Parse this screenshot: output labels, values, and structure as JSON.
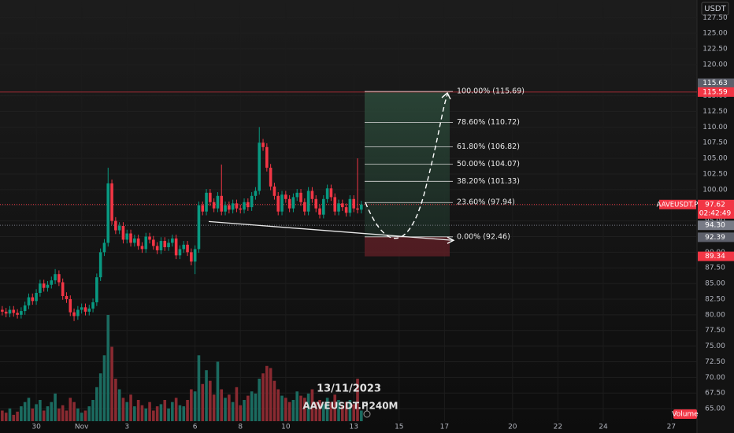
{
  "chart_data": {
    "type": "candlestick",
    "symbol": "AAVEUSDT.P",
    "interval": "240M",
    "date": "13/11/2023",
    "currency": "USDT",
    "volume_label": "Volume",
    "countdown": "02:42:49",
    "up_color": "#089981",
    "down_color": "#f23645",
    "volume_up_color": "#1b6b60",
    "volume_down_color": "#8a2a31",
    "ylim": [
      63,
      130.3
    ],
    "yticks": [
      {
        "value": 65,
        "label": "65.00"
      },
      {
        "value": 67.5,
        "label": "67.50"
      },
      {
        "value": 70,
        "label": "70.00"
      },
      {
        "value": 72.5,
        "label": "72.50"
      },
      {
        "value": 75,
        "label": "75.00"
      },
      {
        "value": 77.5,
        "label": "77.50"
      },
      {
        "value": 80,
        "label": "80.00"
      },
      {
        "value": 82.5,
        "label": "82.50"
      },
      {
        "value": 85,
        "label": "85.00"
      },
      {
        "value": 87.5,
        "label": "87.50"
      },
      {
        "value": 90,
        "label": "90.00"
      },
      {
        "value": 92.5,
        "label": "92.50"
      },
      {
        "value": 95,
        "label": "95.00"
      },
      {
        "value": 97.5,
        "label": "97.50"
      },
      {
        "value": 100,
        "label": "100.00"
      },
      {
        "value": 102.5,
        "label": "102.50"
      },
      {
        "value": 105,
        "label": "105.00"
      },
      {
        "value": 107.5,
        "label": "107.50"
      },
      {
        "value": 110,
        "label": "110.00"
      },
      {
        "value": 112.5,
        "label": "112.50"
      },
      {
        "value": 115,
        "label": "115.00"
      },
      {
        "value": 120,
        "label": "120.00"
      },
      {
        "value": 122.5,
        "label": "122.50"
      },
      {
        "value": 125,
        "label": "125.00"
      },
      {
        "value": 127.5,
        "label": "127.50"
      }
    ],
    "xlim": [
      -0.6,
      183.8
    ],
    "xticks": [
      {
        "value": 9,
        "label": "30"
      },
      {
        "value": 21,
        "label": "Nov"
      },
      {
        "value": 33,
        "label": "3"
      },
      {
        "value": 51,
        "label": "6"
      },
      {
        "value": 63,
        "label": "8"
      },
      {
        "value": 75,
        "label": "10"
      },
      {
        "value": 93,
        "label": "13"
      },
      {
        "value": 105,
        "label": "15"
      },
      {
        "value": 117,
        "label": "17"
      },
      {
        "value": 135,
        "label": "20"
      },
      {
        "value": 147,
        "label": "22"
      },
      {
        "value": 159,
        "label": "24"
      },
      {
        "value": 177,
        "label": "27"
      }
    ],
    "open": [
      80.8,
      80.5,
      80.2,
      80.8,
      80.3,
      80.0,
      80.6,
      81.5,
      82.8,
      82.2,
      83.5,
      85.0,
      84.3,
      84.8,
      85.5,
      86.5,
      85.2,
      83.0,
      82.5,
      80.4,
      79.8,
      80.8,
      81.2,
      80.5,
      81.0,
      82.0,
      86.0,
      90.0,
      91.5,
      101.0,
      95.0,
      93.5,
      94.2,
      92.0,
      93.0,
      91.5,
      92.2,
      91.0,
      90.5,
      92.5,
      92.0,
      91.0,
      90.3,
      91.8,
      90.8,
      91.5,
      92.2,
      89.5,
      90.5,
      91.2,
      90.0,
      88.5,
      90.5,
      97.5,
      96.5,
      99.5,
      98.0,
      97.0,
      99.0,
      96.5,
      97.5,
      96.8,
      97.8,
      97.0,
      96.8,
      98.0,
      97.2,
      99.0,
      99.8,
      107.5,
      106.8,
      103.5,
      100.5,
      99.0,
      96.5,
      99.2,
      98.5,
      97.0,
      98.8,
      99.5,
      98.0,
      96.5,
      99.8,
      98.5,
      97.0,
      96.0,
      98.5,
      100.2,
      98.8,
      96.5,
      97.8,
      97.2,
      96.3,
      98.5,
      97.0,
      96.8
    ],
    "high": [
      81.4,
      81.1,
      81.4,
      81.4,
      80.9,
      81.2,
      82.1,
      83.4,
      83.4,
      84.1,
      85.6,
      85.6,
      85.4,
      86.1,
      87.3,
      87.1,
      85.8,
      83.6,
      83.1,
      81.0,
      81.4,
      81.8,
      81.8,
      81.6,
      82.6,
      86.6,
      90.6,
      92.1,
      103.5,
      101.6,
      95.6,
      94.8,
      94.8,
      93.6,
      93.6,
      92.8,
      92.8,
      91.6,
      93.1,
      93.1,
      92.6,
      91.6,
      92.4,
      92.4,
      92.1,
      92.8,
      92.8,
      91.1,
      91.8,
      91.8,
      90.6,
      91.1,
      98.1,
      98.1,
      100.1,
      100.1,
      98.6,
      99.6,
      104.0,
      98.1,
      98.1,
      98.4,
      98.4,
      97.6,
      98.6,
      98.6,
      99.6,
      100.4,
      110.0,
      108.1,
      107.4,
      104.1,
      101.1,
      99.6,
      99.8,
      99.8,
      99.1,
      99.4,
      100.1,
      100.1,
      98.6,
      100.4,
      100.4,
      99.1,
      97.6,
      99.1,
      100.8,
      100.8,
      99.4,
      98.4,
      98.4,
      97.8,
      99.1,
      99.1,
      105.0,
      98.2
    ],
    "low": [
      79.9,
      79.6,
      79.6,
      79.7,
      79.4,
      79.4,
      80.0,
      80.9,
      81.6,
      81.6,
      82.9,
      83.7,
      83.7,
      84.2,
      84.9,
      84.6,
      82.4,
      81.9,
      79.8,
      79.0,
      79.2,
      80.2,
      79.9,
      79.9,
      80.4,
      81.4,
      85.4,
      89.4,
      90.9,
      94.4,
      92.9,
      92.9,
      91.4,
      91.4,
      90.9,
      90.9,
      90.4,
      89.9,
      89.9,
      91.4,
      90.4,
      89.7,
      89.7,
      90.2,
      90.2,
      90.9,
      88.9,
      88.9,
      89.9,
      89.4,
      87.9,
      86.5,
      89.9,
      95.9,
      95.9,
      97.4,
      96.4,
      96.4,
      95.9,
      95.9,
      96.2,
      96.2,
      96.4,
      96.2,
      96.2,
      96.6,
      96.6,
      98.4,
      99.2,
      106.2,
      102.9,
      99.9,
      98.4,
      95.9,
      95.9,
      97.9,
      96.4,
      96.4,
      98.2,
      97.4,
      95.9,
      95.9,
      97.9,
      96.4,
      95.4,
      95.4,
      97.9,
      98.2,
      95.9,
      95.9,
      96.6,
      95.7,
      95.7,
      96.4,
      96.2,
      96.2
    ],
    "close": [
      80.5,
      80.2,
      80.8,
      80.3,
      80.0,
      80.6,
      81.5,
      82.8,
      82.2,
      83.5,
      85.0,
      84.3,
      84.8,
      85.5,
      86.5,
      85.2,
      83.0,
      82.5,
      80.4,
      79.8,
      80.8,
      81.2,
      80.5,
      81.0,
      82.0,
      86.0,
      90.0,
      91.5,
      101.0,
      95.0,
      93.5,
      94.2,
      92.0,
      93.0,
      91.5,
      92.2,
      91.0,
      90.5,
      92.5,
      92.0,
      91.0,
      90.3,
      91.8,
      90.8,
      91.5,
      92.2,
      89.5,
      90.5,
      91.2,
      90.0,
      88.5,
      90.5,
      97.5,
      96.5,
      99.5,
      98.0,
      97.0,
      99.0,
      96.5,
      97.5,
      96.8,
      97.8,
      97.0,
      96.8,
      98.0,
      97.2,
      99.0,
      99.8,
      107.5,
      106.8,
      103.5,
      100.5,
      99.0,
      96.5,
      99.2,
      98.5,
      97.0,
      98.8,
      99.5,
      98.0,
      96.5,
      99.8,
      98.5,
      97.0,
      96.0,
      98.5,
      100.2,
      98.8,
      96.5,
      97.8,
      97.2,
      96.3,
      98.5,
      97.0,
      96.8,
      97.62
    ],
    "volume": [
      10,
      8,
      12,
      6,
      9,
      14,
      18,
      22,
      12,
      16,
      20,
      10,
      14,
      18,
      26,
      12,
      15,
      10,
      22,
      18,
      12,
      8,
      10,
      14,
      20,
      32,
      45,
      62,
      100,
      70,
      40,
      30,
      22,
      18,
      25,
      14,
      20,
      15,
      12,
      18,
      10,
      14,
      16,
      20,
      12,
      18,
      22,
      15,
      14,
      20,
      30,
      28,
      62,
      35,
      48,
      38,
      25,
      56,
      30,
      22,
      25,
      18,
      32,
      15,
      20,
      24,
      28,
      26,
      40,
      45,
      52,
      50,
      38,
      30,
      24,
      22,
      18,
      20,
      28,
      24,
      22,
      26,
      30,
      18,
      20,
      16,
      22,
      18,
      25,
      20,
      14,
      18,
      20,
      16,
      40,
      10
    ],
    "fib_levels": [
      {
        "label": "100.00% (115.69)",
        "value": 115.69
      },
      {
        "label": "78.60% (110.72)",
        "value": 110.72
      },
      {
        "label": "61.80% (106.82)",
        "value": 106.82
      },
      {
        "label": "50.00% (104.07)",
        "value": 104.07
      },
      {
        "label": "38.20% (101.33)",
        "value": 101.33
      },
      {
        "label": "23.60% (97.94)",
        "value": 97.94
      },
      {
        "label": "0.00% (92.46)",
        "value": 92.46
      }
    ],
    "stop_level": 89.34,
    "trend_line": [
      94.9,
      91.9
    ],
    "alert_line": 115.59,
    "price_line": 94.3,
    "price_labels": [
      {
        "label": "115.63",
        "value": 115.63,
        "color": "#5d606b"
      },
      {
        "label": "115.59",
        "value": 115.59,
        "color": "#f23645"
      },
      {
        "label": "97.62",
        "value": 97.62,
        "color": "#f23645"
      },
      {
        "label": "94.30",
        "value": 94.3,
        "color": "#787b86"
      },
      {
        "label": "92.39",
        "value": 92.39,
        "color": "#5d606b"
      },
      {
        "label": "89.34",
        "value": 89.34,
        "color": "#f23645"
      }
    ]
  }
}
